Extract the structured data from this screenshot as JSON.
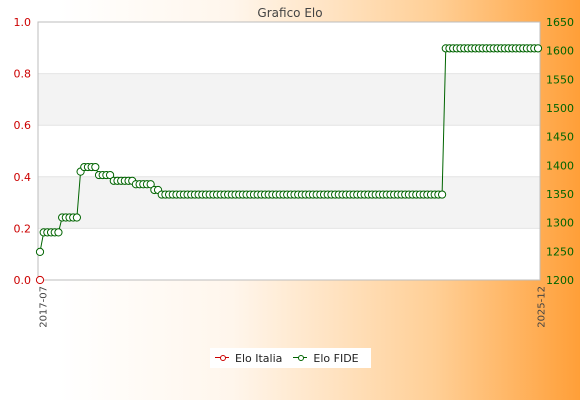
{
  "colors": {
    "italia": "#cc0000",
    "fide": "#006400",
    "band": "#f3f3f3",
    "grid": "#e4e4e4",
    "left_axis_text": "#cc0000",
    "right_axis_text": "#006400"
  },
  "chart_data": {
    "type": "line",
    "title": "Grafico Elo",
    "left_axis": {
      "range": [
        0,
        1.0
      ],
      "ticks": [
        "0.0",
        "0.2",
        "0.4",
        "0.6",
        "0.8",
        "1.0"
      ]
    },
    "right_axis": {
      "range": [
        1200,
        1650
      ],
      "ticks": [
        "1200",
        "1250",
        "1300",
        "1350",
        "1400",
        "1450",
        "1500",
        "1550",
        "1600",
        "1650"
      ]
    },
    "x_axis": {
      "first_label": "2017-07",
      "last_label": "2025-12",
      "labels_visible": [
        "2017-07",
        "2025-12"
      ]
    },
    "grid": true,
    "legend_position": "bottom",
    "series": [
      {
        "name": "Elo Italia",
        "axis": "left",
        "values": [
          0
        ]
      },
      {
        "name": "Elo FIDE",
        "axis": "right",
        "values": [
          1249,
          1283,
          1283,
          1283,
          1283,
          1283,
          1309,
          1309,
          1309,
          1309,
          1309,
          1389,
          1397,
          1397,
          1397,
          1397,
          1383,
          1383,
          1383,
          1383,
          1373,
          1373,
          1373,
          1373,
          1373,
          1373,
          1367,
          1367,
          1367,
          1367,
          1367,
          1357,
          1357,
          1349,
          1349,
          1349,
          1349,
          1349,
          1349,
          1349,
          1349,
          1349,
          1349,
          1349,
          1349,
          1349,
          1349,
          1349,
          1349,
          1349,
          1349,
          1349,
          1349,
          1349,
          1349,
          1349,
          1349,
          1349,
          1349,
          1349,
          1349,
          1349,
          1349,
          1349,
          1349,
          1349,
          1349,
          1349,
          1349,
          1349,
          1349,
          1349,
          1349,
          1349,
          1349,
          1349,
          1349,
          1349,
          1349,
          1349,
          1349,
          1349,
          1349,
          1349,
          1349,
          1349,
          1349,
          1349,
          1349,
          1349,
          1349,
          1349,
          1349,
          1349,
          1349,
          1349,
          1349,
          1349,
          1349,
          1349,
          1349,
          1349,
          1349,
          1349,
          1349,
          1349,
          1349,
          1349,
          1349,
          1349,
          1604,
          1604,
          1604,
          1604,
          1604,
          1604,
          1604,
          1604,
          1604,
          1604,
          1604,
          1604,
          1604,
          1604,
          1604,
          1604,
          1604,
          1604,
          1604,
          1604,
          1604,
          1604,
          1604,
          1604,
          1604,
          1604
        ]
      }
    ]
  }
}
